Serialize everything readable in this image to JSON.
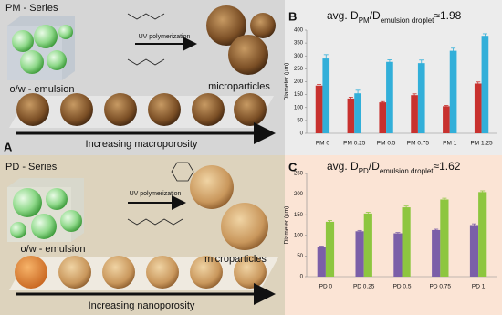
{
  "panel_a": {
    "letter": "A",
    "series_title": "PM - Series",
    "step": "UV polymerization",
    "emulsion": "o/w - emulsion",
    "product": "microparticles",
    "trend": "Increasing macroporosity"
  },
  "panel_pd": {
    "series_title": "PD - Series",
    "step": "UV polymerization",
    "emulsion": "o/w - emulsion",
    "product": "microparticles",
    "trend": "Increasing nanoporosity"
  },
  "chart_data": [
    {
      "type": "bar",
      "label": "B",
      "title": [
        "avg. D",
        "PM",
        "/D",
        "emulsion droplet",
        "≈1.98"
      ],
      "ylabel": "Diameter (µm)",
      "categories": [
        "PM 0",
        "PM 0.25",
        "PM 0.5",
        "PM 0.75",
        "PM 1",
        "PM 1.25"
      ],
      "series": [
        {
          "color": "#c8312e",
          "values": [
            185,
            135,
            120,
            148,
            105,
            193
          ],
          "errors": [
            4,
            5,
            3,
            5,
            3,
            6
          ]
        },
        {
          "color": "#32afd9",
          "values": [
            290,
            155,
            277,
            272,
            320,
            378
          ],
          "errors": [
            15,
            12,
            8,
            12,
            10,
            8
          ]
        }
      ],
      "ylim": [
        0,
        400
      ],
      "yticks": [
        0,
        50,
        100,
        150,
        200,
        250,
        300,
        350,
        400
      ]
    },
    {
      "type": "bar",
      "label": "C",
      "title": [
        "avg. D",
        "PD",
        "/D",
        "emulsion droplet",
        "≈1.62"
      ],
      "ylabel": "Diameter (µm)",
      "categories": [
        "PD 0",
        "PD 0.25",
        "PD 0.5",
        "PD 0.75",
        "PD 1"
      ],
      "series": [
        {
          "color": "#7b5fa8",
          "values": [
            72,
            110,
            105,
            113,
            125
          ],
          "errors": [
            2,
            2,
            2,
            2,
            3
          ]
        },
        {
          "color": "#8dc63f",
          "values": [
            133,
            153,
            168,
            187,
            205
          ],
          "errors": [
            3,
            3,
            3,
            3,
            3
          ]
        }
      ],
      "ylim": [
        0,
        250
      ],
      "yticks": [
        0,
        50,
        100,
        150,
        200,
        250
      ]
    }
  ]
}
